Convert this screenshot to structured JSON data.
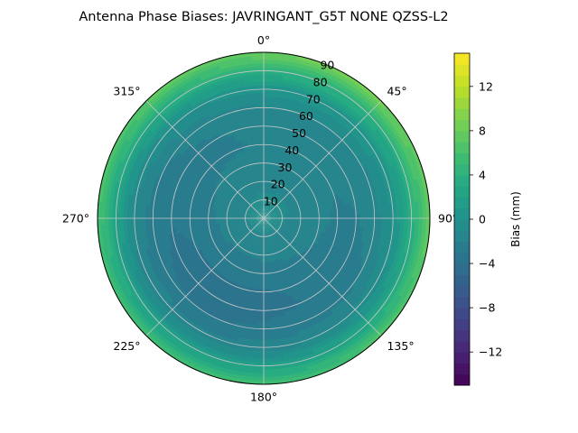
{
  "chart_data": {
    "type": "heatmap",
    "subtype": "polar-contour",
    "title": "Antenna Phase Biases: JAVRINGANT_G5T  NONE QZSS-L2",
    "azimuth_ticks": [
      {
        "deg": 0,
        "label": "0°"
      },
      {
        "deg": 45,
        "label": "45°"
      },
      {
        "deg": 90,
        "label": "90°"
      },
      {
        "deg": 135,
        "label": "135°"
      },
      {
        "deg": 180,
        "label": "180°"
      },
      {
        "deg": 225,
        "label": "225°"
      },
      {
        "deg": 270,
        "label": "270°"
      },
      {
        "deg": 315,
        "label": "315°"
      }
    ],
    "radial_ticks": [
      10,
      20,
      30,
      40,
      50,
      60,
      70,
      80,
      90
    ],
    "radial_labels": [
      "10",
      "20",
      "30",
      "40",
      "50",
      "60",
      "70",
      "80",
      "90"
    ],
    "radial_range": [
      0,
      90
    ],
    "bias_profile": {
      "zenith_angle": [
        0,
        10,
        20,
        30,
        40,
        50,
        60,
        70,
        75,
        80,
        85,
        90
      ],
      "bias_mm": [
        -0.5,
        -1.0,
        -1.5,
        -2.0,
        -2.5,
        -2.5,
        -2.0,
        -0.5,
        1.0,
        3.0,
        5.0,
        7.0
      ],
      "azimuth_modulation_mm": 1.5
    },
    "colorbar": {
      "label": "Bias (mm)",
      "range": [
        -15,
        15
      ],
      "ticks": [
        -12,
        -8,
        -4,
        0,
        4,
        8,
        12
      ],
      "tick_labels": [
        "−12",
        "−8",
        "−4",
        "0",
        "4",
        "8",
        "12"
      ],
      "levels": 30,
      "colormap": "viridis"
    },
    "grid": true
  }
}
